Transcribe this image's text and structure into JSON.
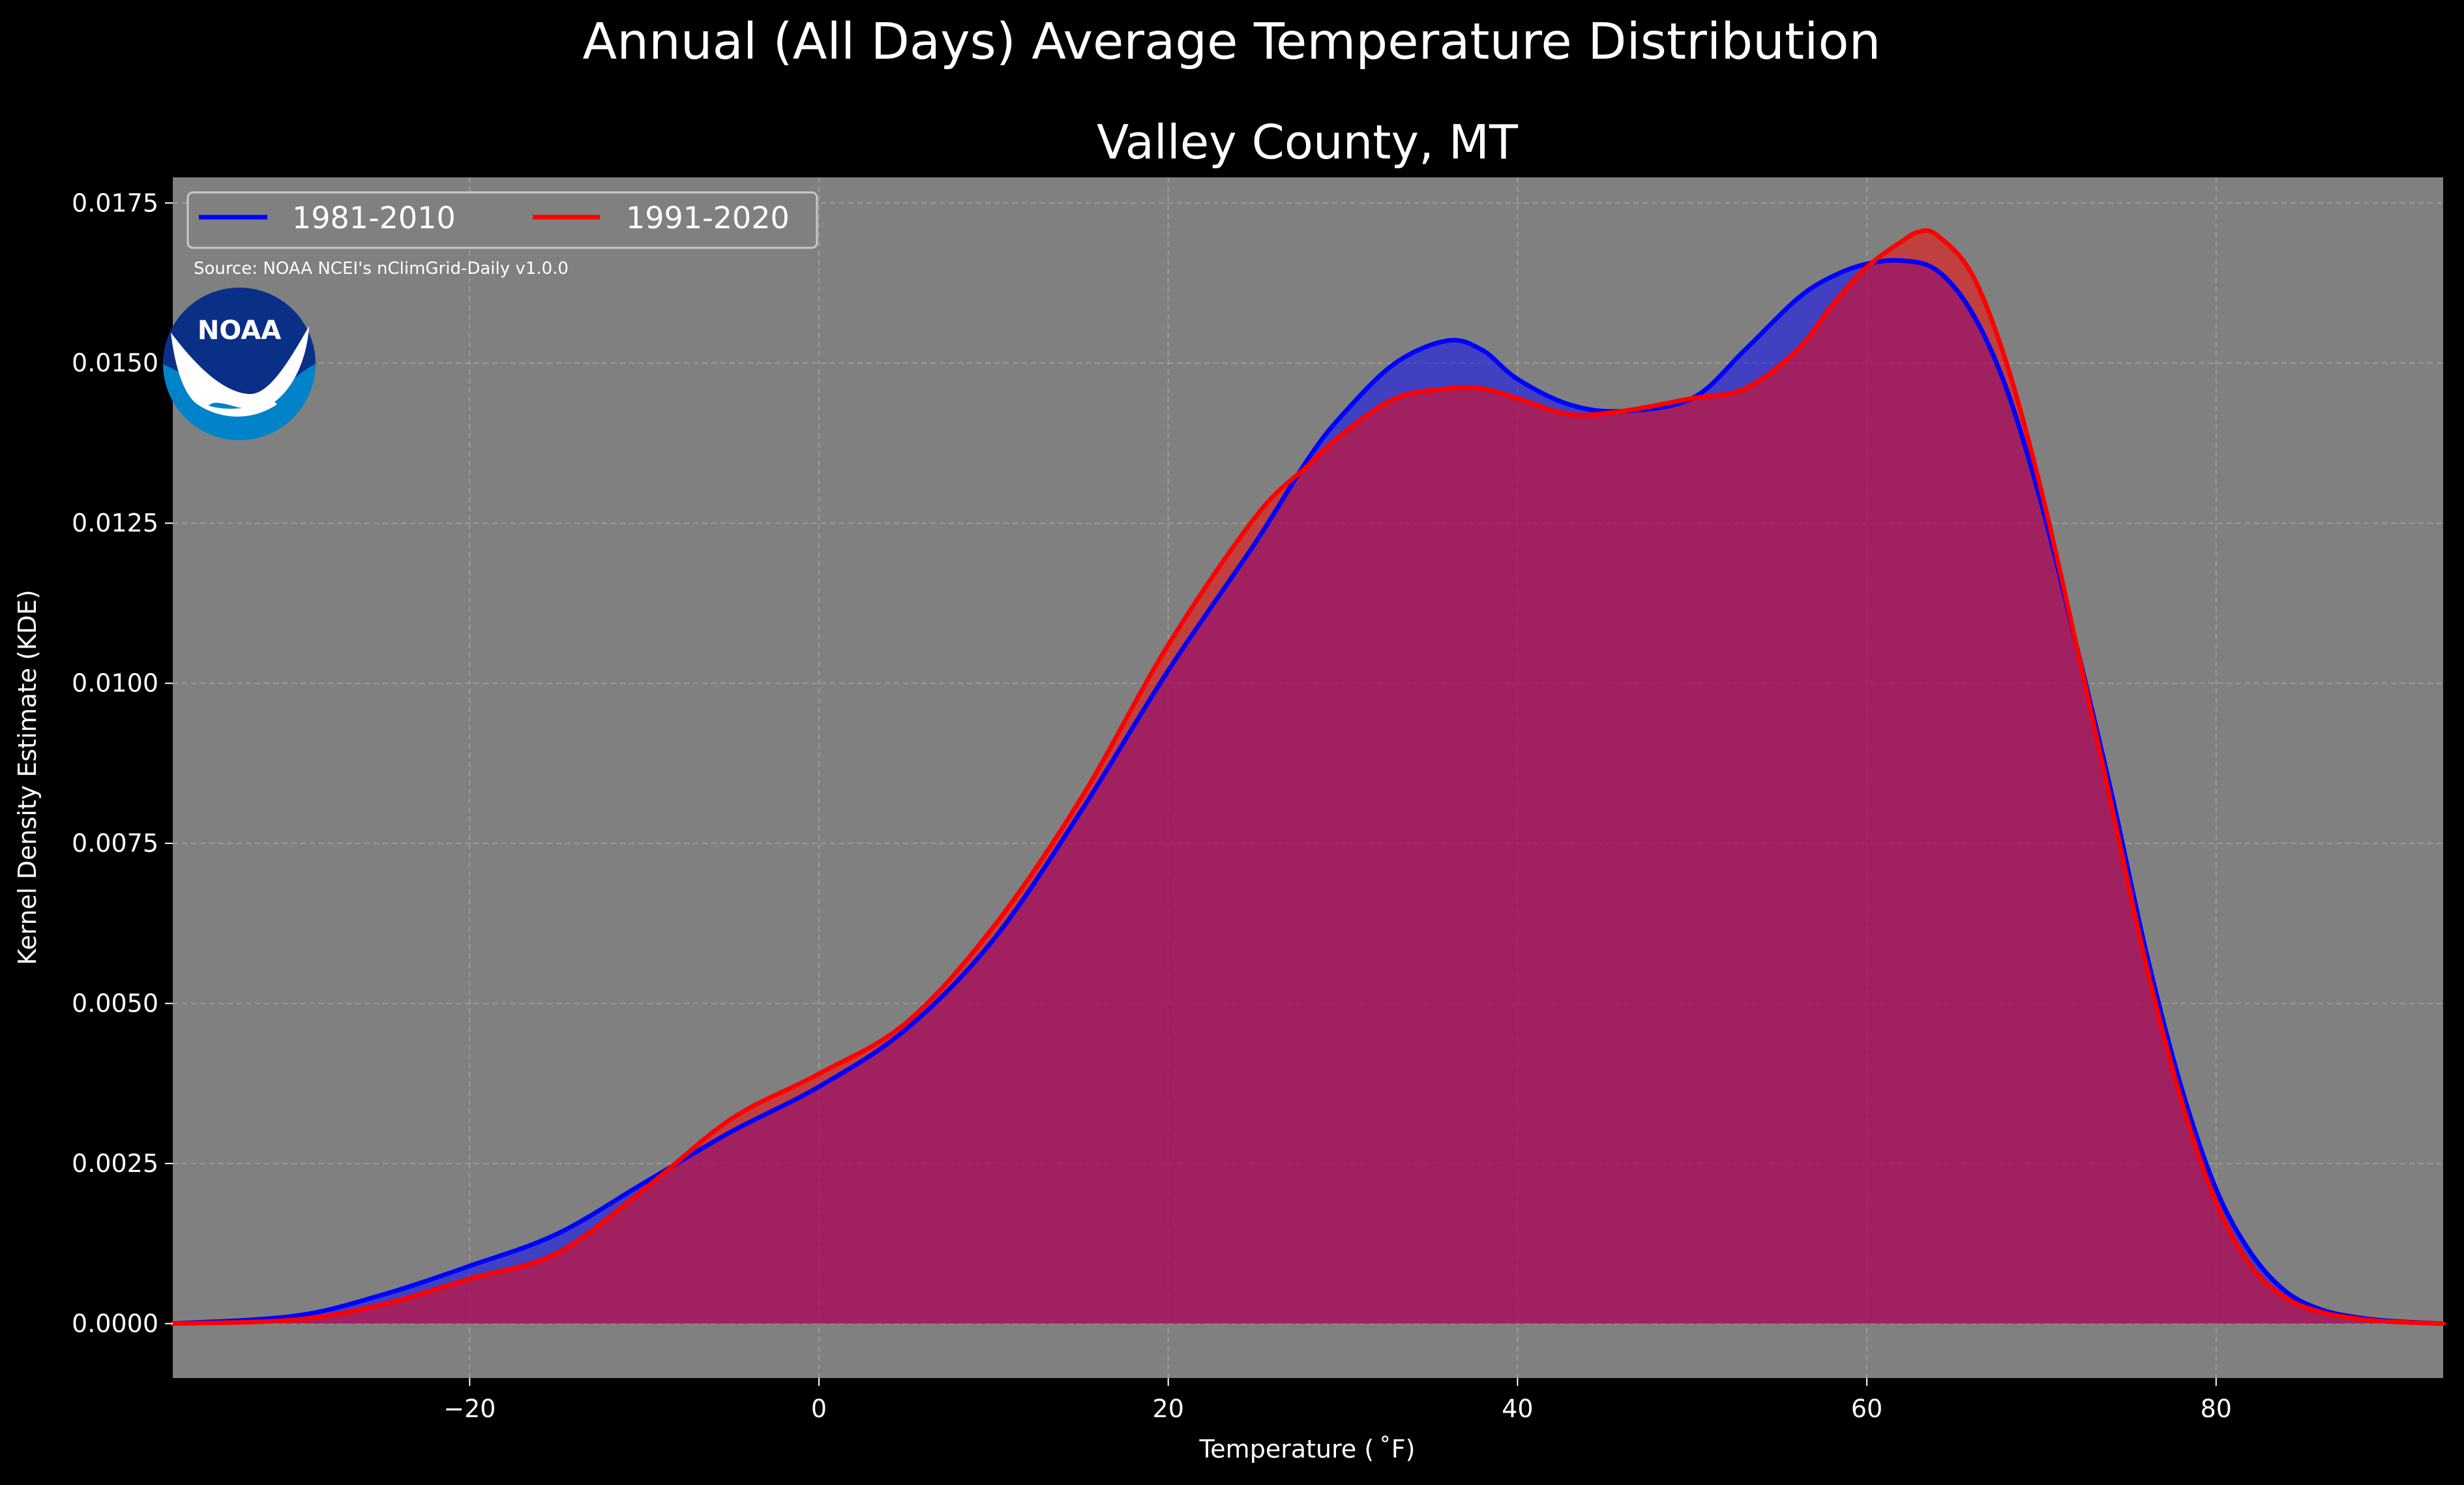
{
  "chart_data": {
    "type": "area",
    "title": "Annual (All Days) Average Temperature Distribution",
    "subtitle": "Valley County, MT",
    "xlabel": "Temperature ( ˚F)",
    "ylabel": "Kernel Density Estimate (KDE)",
    "xlim": [
      -37,
      93
    ],
    "ylim": [
      -0.00085,
      0.0179
    ],
    "xticks": [
      -20,
      0,
      20,
      40,
      60,
      80
    ],
    "xtick_labels": [
      "−20",
      "0",
      "20",
      "40",
      "60",
      "80"
    ],
    "yticks": [
      0,
      0.0025,
      0.005,
      0.0075,
      0.01,
      0.0125,
      0.015,
      0.0175
    ],
    "ytick_labels": [
      "0.0000",
      "0.0025",
      "0.0050",
      "0.0075",
      "0.0100",
      "0.0125",
      "0.0150",
      "0.0175"
    ],
    "grid": true,
    "legend_position": "top-left",
    "source_note": "Source: NOAA NCEI's nClimGrid-Daily v1.0.0",
    "logo_text": "NOAA",
    "colors": {
      "figure_background": "#000000",
      "plot_background": "#808080",
      "grid": "#b0b0b0",
      "text": "#ffffff",
      "noaa_dark_blue": "#0a2f87",
      "noaa_light_blue": "#0083c9"
    },
    "series": [
      {
        "name": "1981-2010",
        "color": "#0000ff",
        "fill_opacity": 0.5,
        "x": [
          -37,
          -30,
          -25,
          -20,
          -15,
          -10,
          -5,
          0,
          5,
          10,
          15,
          20,
          25,
          28,
          30,
          33,
          36,
          38,
          40,
          43,
          46,
          50,
          53,
          56,
          58,
          60,
          62,
          64,
          66,
          68,
          70,
          72,
          74,
          76,
          78,
          80,
          82,
          84,
          86,
          88,
          90,
          93
        ],
        "y": [
          0.0,
          0.00012,
          0.00045,
          0.0009,
          0.0014,
          0.0022,
          0.003,
          0.0037,
          0.0046,
          0.006,
          0.008,
          0.0102,
          0.0122,
          0.0135,
          0.0142,
          0.015,
          0.01535,
          0.0152,
          0.01475,
          0.01435,
          0.01425,
          0.01445,
          0.0152,
          0.016,
          0.01635,
          0.01655,
          0.0166,
          0.01645,
          0.0158,
          0.0146,
          0.0128,
          0.0106,
          0.0083,
          0.0058,
          0.0037,
          0.0021,
          0.0011,
          0.0005,
          0.00022,
          0.0001,
          4e-05,
          0.0
        ]
      },
      {
        "name": "1991-2020",
        "color": "#ff0000",
        "fill_opacity": 0.5,
        "x": [
          -37,
          -30,
          -25,
          -20,
          -15,
          -10,
          -5,
          0,
          5,
          10,
          15,
          20,
          25,
          28,
          30,
          33,
          36,
          38,
          40,
          43,
          46,
          50,
          53,
          56,
          58,
          60,
          62,
          63,
          64,
          66,
          68,
          70,
          72,
          74,
          76,
          78,
          80,
          82,
          84,
          86,
          88,
          90,
          93
        ],
        "y": [
          0.0,
          6e-05,
          0.0003,
          0.0007,
          0.0011,
          0.0021,
          0.0032,
          0.0039,
          0.0047,
          0.0062,
          0.0082,
          0.0106,
          0.0126,
          0.0134,
          0.0139,
          0.01445,
          0.0146,
          0.0146,
          0.01445,
          0.0142,
          0.01425,
          0.01445,
          0.0146,
          0.0152,
          0.0159,
          0.0165,
          0.0169,
          0.01705,
          0.017,
          0.0164,
          0.015,
          0.013,
          0.0106,
          0.0081,
          0.0056,
          0.0035,
          0.0019,
          0.0009,
          0.0004,
          0.00018,
          8e-05,
          3e-05,
          0.0
        ]
      }
    ]
  }
}
